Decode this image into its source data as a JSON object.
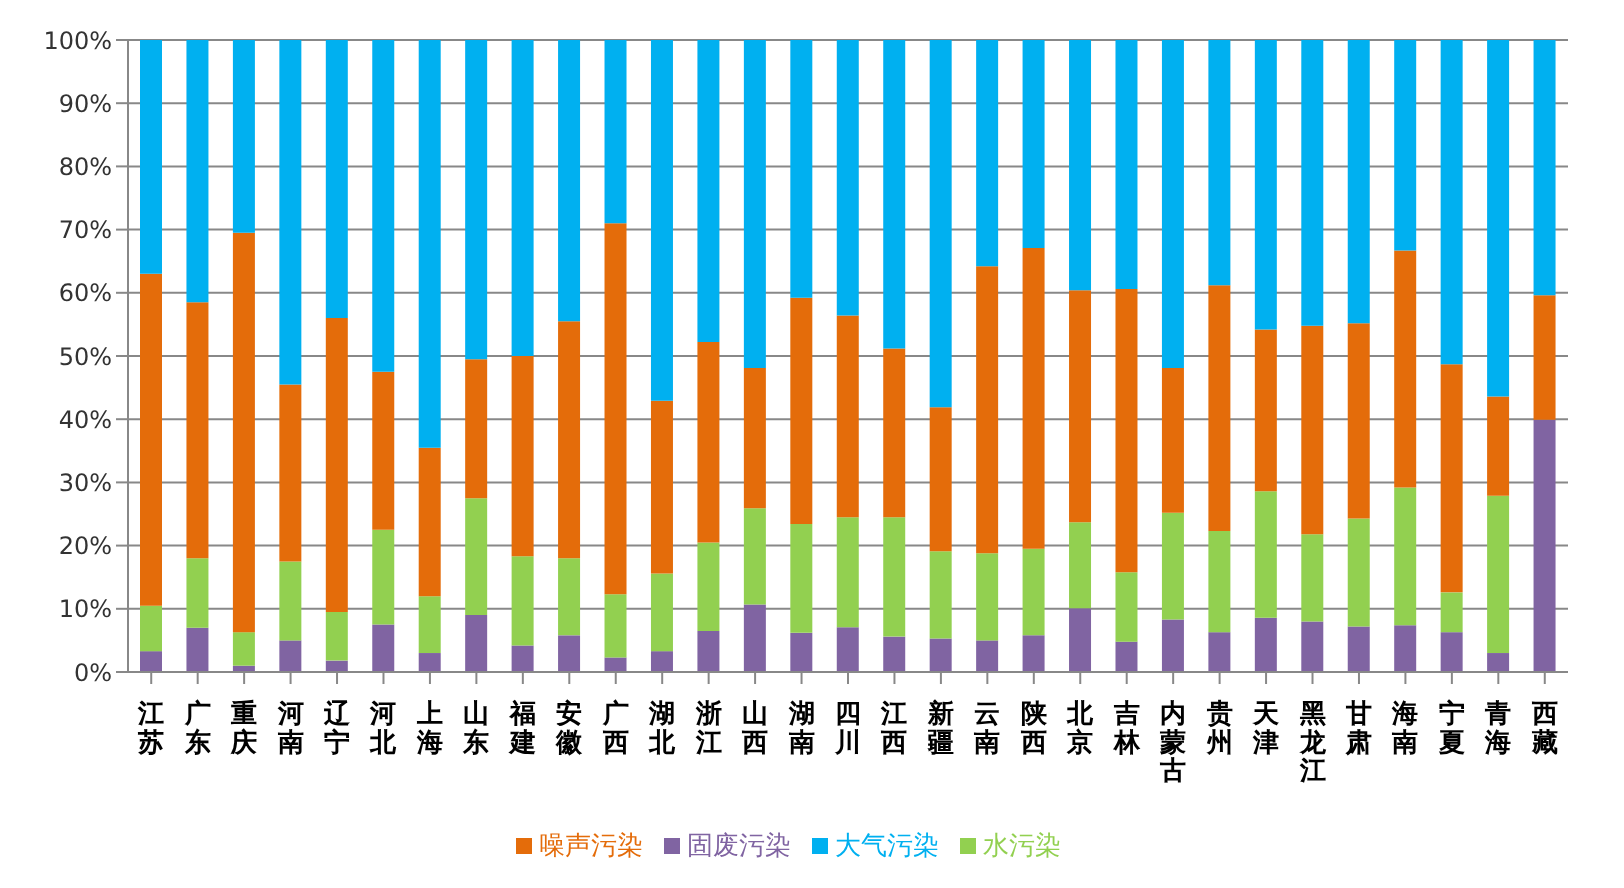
{
  "chart_data": {
    "type": "bar",
    "stacked": true,
    "categories": [
      "江苏",
      "广东",
      "重庆",
      "河南",
      "辽宁",
      "河北",
      "上海",
      "山东",
      "福建",
      "安徽",
      "广西",
      "湖北",
      "浙江",
      "山西",
      "湖南",
      "四川",
      "江西",
      "新疆",
      "云南",
      "陕西",
      "北京",
      "吉林",
      "内蒙古",
      "贵州",
      "天津",
      "黑龙江",
      "甘肃",
      "海南",
      "宁夏",
      "青海",
      "西藏"
    ],
    "series": [
      {
        "name": "固废污染",
        "color": "#8064a2",
        "values": [
          3.3,
          7,
          1,
          5,
          1.8,
          7.5,
          3,
          9,
          4.2,
          5.8,
          2.3,
          3.3,
          6.5,
          10.7,
          6.2,
          7.1,
          5.6,
          5.3,
          5,
          5.8,
          10.1,
          4.8,
          8.3,
          6.3,
          8.6,
          8,
          7.2,
          7.4,
          6.3,
          3,
          39.9
        ]
      },
      {
        "name": "水污染",
        "color": "#92d050",
        "values": [
          7.2,
          11,
          5.3,
          12.5,
          7.7,
          15,
          9,
          18.5,
          14.1,
          12.2,
          10,
          12.3,
          14,
          15.2,
          17.2,
          17.4,
          18.9,
          13.8,
          13.8,
          13.7,
          13.6,
          11,
          16.9,
          16,
          20,
          13.8,
          17.1,
          21.8,
          6.3,
          24.9,
          0
        ]
      },
      {
        "name": "噪声污染",
        "color": "#e46c0a",
        "values": [
          52.5,
          40.5,
          63.2,
          28,
          46.5,
          25,
          23.5,
          22,
          31.7,
          37.5,
          58.7,
          27.3,
          31.7,
          22.2,
          35.8,
          31.9,
          26.7,
          22.8,
          45.4,
          47.6,
          36.7,
          44.8,
          22.9,
          38.9,
          25.6,
          33,
          30.9,
          37.5,
          36.1,
          15.7,
          19.7
        ]
      },
      {
        "name": "大气污染",
        "color": "#00b0f0",
        "values": [
          37,
          41.5,
          30.5,
          54.5,
          44,
          52.5,
          64.5,
          50.5,
          50,
          44.5,
          29,
          57.1,
          47.8,
          51.9,
          40.8,
          43.6,
          48.8,
          58.1,
          35.8,
          32.9,
          39.6,
          39.4,
          51.9,
          38.8,
          45.8,
          45.2,
          44.8,
          33.3,
          51.3,
          56.4,
          40.4
        ]
      }
    ],
    "ylim": [
      0,
      100
    ],
    "yticks": [
      {
        "value": 0,
        "label": "0%"
      },
      {
        "value": 10,
        "label": "10%"
      },
      {
        "value": 20,
        "label": "20%"
      },
      {
        "value": 30,
        "label": "30%"
      },
      {
        "value": 40,
        "label": "40%"
      },
      {
        "value": 50,
        "label": "50%"
      },
      {
        "value": 60,
        "label": "60%"
      },
      {
        "value": 70,
        "label": "70%"
      },
      {
        "value": 80,
        "label": "80%"
      },
      {
        "value": 90,
        "label": "90%"
      },
      {
        "value": 100,
        "label": "100%"
      }
    ],
    "grid": "y",
    "legend": "bottom"
  }
}
